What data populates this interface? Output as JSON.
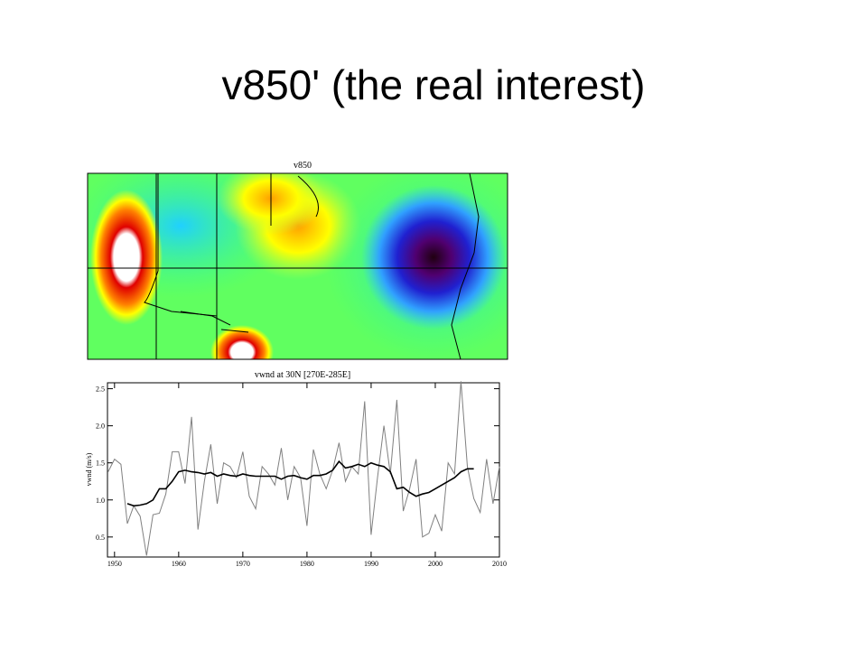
{
  "title": "v850' (the real interest)",
  "map": {
    "title": "v850"
  },
  "chart_data": {
    "type": "line",
    "title": "vwnd at 30N [270E-285E]",
    "ylabel": "vwnd (m/s)",
    "x": [
      1949,
      1950,
      1951,
      1952,
      1953,
      1954,
      1955,
      1956,
      1957,
      1958,
      1959,
      1960,
      1961,
      1962,
      1963,
      1964,
      1965,
      1966,
      1967,
      1968,
      1969,
      1970,
      1971,
      1972,
      1973,
      1974,
      1975,
      1976,
      1977,
      1978,
      1979,
      1980,
      1981,
      1982,
      1983,
      1984,
      1985,
      1986,
      1987,
      1988,
      1989,
      1990,
      1991,
      1992,
      1993,
      1994,
      1995,
      1996,
      1997,
      1998,
      1999,
      2000,
      2001,
      2002,
      2003,
      2004,
      2005,
      2006,
      2007,
      2008,
      2009,
      2010
    ],
    "series": [
      {
        "color": "#808080",
        "values": [
          1.38,
          1.55,
          1.48,
          0.68,
          0.92,
          0.78,
          0.25,
          0.8,
          0.82,
          1.08,
          1.65,
          1.65,
          1.22,
          2.12,
          0.6,
          1.25,
          1.75,
          0.95,
          1.5,
          1.45,
          1.3,
          1.65,
          1.05,
          0.88,
          1.45,
          1.35,
          1.2,
          1.7,
          1.0,
          1.45,
          1.3,
          0.65,
          1.68,
          1.35,
          1.15,
          1.4,
          1.77,
          1.25,
          1.45,
          1.35,
          2.33,
          0.53,
          1.3,
          2.0,
          1.35,
          2.35,
          0.85,
          1.15,
          1.55,
          0.5,
          0.55,
          0.8,
          0.58,
          1.5,
          1.35,
          2.6,
          1.45,
          1.02,
          0.83,
          1.55,
          0.95,
          1.45
        ]
      },
      {
        "color": "#000000",
        "values": [
          null,
          null,
          null,
          0.95,
          0.92,
          0.93,
          0.95,
          1.0,
          1.15,
          1.15,
          1.25,
          1.38,
          1.4,
          1.38,
          1.37,
          1.35,
          1.37,
          1.32,
          1.35,
          1.33,
          1.32,
          1.35,
          1.33,
          1.32,
          1.32,
          1.32,
          1.32,
          1.28,
          1.32,
          1.33,
          1.3,
          1.28,
          1.33,
          1.33,
          1.35,
          1.4,
          1.52,
          1.43,
          1.45,
          1.48,
          1.45,
          1.5,
          1.47,
          1.45,
          1.38,
          1.15,
          1.17,
          1.1,
          1.05,
          1.08,
          1.1,
          1.15,
          1.2,
          1.25,
          1.3,
          1.38,
          1.42,
          1.42,
          null,
          null,
          null,
          null
        ]
      }
    ],
    "xlim": [
      1948.9,
      2010
    ],
    "ylim": [
      0.23,
      2.58
    ],
    "xticks": [
      1950,
      1960,
      1970,
      1980,
      1990,
      2000,
      2010
    ],
    "yticks": [
      0.5,
      {
        "value": 1,
        "label": "1.0"
      },
      1.5,
      {
        "value": 2,
        "label": "2.0"
      },
      2.5
    ]
  }
}
